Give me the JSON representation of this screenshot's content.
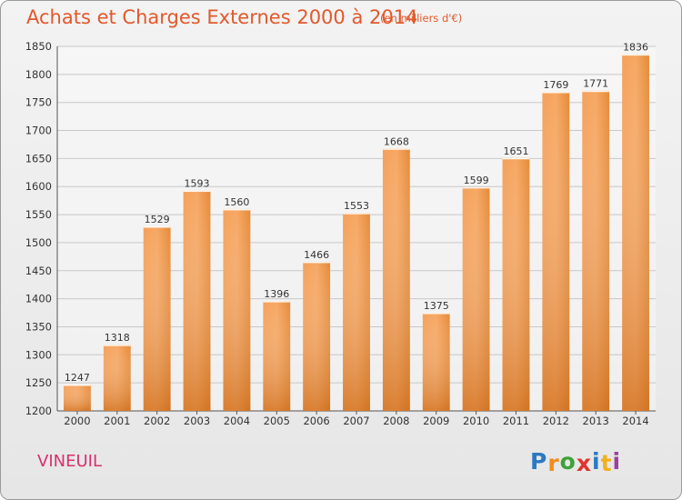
{
  "title": "Achats et Charges Externes 2000 à 2014",
  "subtitle": "(en milliers d'€)",
  "place": "VINEUIL",
  "logo": {
    "letters": [
      "P",
      "r",
      "o",
      "x",
      "i",
      "t",
      "i"
    ],
    "colors": [
      "#2b79c2",
      "#f28c1d",
      "#3ea23a",
      "#e2332c",
      "#2b79c2",
      "#f2b01d",
      "#9c3fa0"
    ]
  },
  "colors": {
    "bar": "#e8812c",
    "bar_light": "#f7a55c",
    "bar_dark": "#c96a1c",
    "title": "#e2582b",
    "place": "#d8306d"
  },
  "chart_data": {
    "type": "bar",
    "categories": [
      "2000",
      "2001",
      "2002",
      "2003",
      "2004",
      "2005",
      "2006",
      "2007",
      "2008",
      "2009",
      "2010",
      "2011",
      "2012",
      "2013",
      "2014"
    ],
    "values": [
      1247,
      1318,
      1529,
      1593,
      1560,
      1396,
      1466,
      1553,
      1668,
      1375,
      1599,
      1651,
      1769,
      1771,
      1836
    ],
    "ylim": [
      1200,
      1850
    ],
    "yticks": [
      1200,
      1250,
      1300,
      1350,
      1400,
      1450,
      1500,
      1550,
      1600,
      1650,
      1700,
      1750,
      1800,
      1850
    ],
    "grid": true
  }
}
